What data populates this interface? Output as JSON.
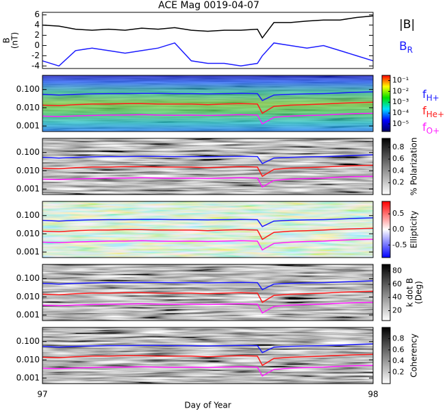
{
  "chart_data": [
    {
      "type": "line",
      "title": "ACE Mag 0019-04-07",
      "y_label": [
        "B",
        "(nT)"
      ],
      "legend": true,
      "x": [
        97,
        97.05,
        97.1,
        97.15,
        97.2,
        97.25,
        97.3,
        97.35,
        97.4,
        97.45,
        97.5,
        97.55,
        97.6,
        97.65,
        97.665,
        97.7,
        97.75,
        97.8,
        97.85,
        97.9,
        97.95,
        98
      ],
      "xlim": [
        97,
        98
      ],
      "ylim": [
        -4.5,
        6.5
      ],
      "yticks": [
        -4,
        -2,
        0,
        2,
        4,
        6
      ],
      "series": [
        {
          "name": "|B|",
          "color": "#000000",
          "values": [
            4,
            3.8,
            3.2,
            3,
            3.2,
            3,
            3.4,
            3.2,
            3.5,
            3,
            2.8,
            3,
            3,
            3.2,
            1.5,
            4.5,
            4.5,
            4.8,
            5,
            5,
            5.5,
            5.8
          ]
        },
        {
          "name": "B",
          "name_sub": "R",
          "color": "#1a1aff",
          "values": [
            -3,
            -4,
            -1,
            -0.5,
            -1,
            -1.5,
            -1,
            -0.5,
            0.5,
            -3,
            -3.5,
            -3.5,
            -4,
            -3.5,
            -2,
            0.5,
            0,
            -0.5,
            0,
            -1,
            -2,
            -3
          ]
        }
      ]
    },
    {
      "type": "spectrogram",
      "legend": true,
      "log_scale": true,
      "colormap": "rainbow",
      "x": [
        97,
        97.05,
        97.1,
        97.15,
        97.2,
        97.25,
        97.3,
        97.35,
        97.4,
        97.45,
        97.5,
        97.55,
        97.6,
        97.65,
        97.665,
        97.7,
        97.75,
        97.8,
        97.85,
        97.9,
        97.95,
        98
      ],
      "xlim": [
        97,
        98
      ],
      "ylim": [
        0.0005,
        0.6
      ],
      "yticks": [
        0.001,
        {
          "value": 0.01,
          "label": "0.010"
        },
        {
          "value": 0.1,
          "label": "0.100"
        }
      ],
      "zlim": [
        2e-06,
        0.3
      ],
      "zlog": true,
      "zticks": [
        {
          "value": 0.1,
          "label": "10⁻¹"
        },
        {
          "value": 0.01,
          "label": "10⁻²"
        },
        {
          "value": 0.001,
          "label": "10⁻³"
        },
        {
          "value": 0.0001,
          "label": "10⁻⁴"
        },
        {
          "value": 1e-05,
          "label": "10⁻⁵"
        }
      ],
      "series": [
        {
          "name": "f",
          "name_sub": "H+",
          "color": "#1a1aff",
          "values": [
            0.055,
            0.05,
            0.055,
            0.058,
            0.06,
            0.06,
            0.062,
            0.062,
            0.06,
            0.06,
            0.058,
            0.06,
            0.062,
            0.06,
            0.025,
            0.05,
            0.055,
            0.058,
            0.06,
            0.065,
            0.07,
            0.075
          ]
        },
        {
          "name": "f",
          "name_sub": "He+",
          "color": "#ff1a1a",
          "values": [
            0.014,
            0.013,
            0.015,
            0.016,
            0.016,
            0.017,
            0.017,
            0.016,
            0.016,
            0.016,
            0.015,
            0.016,
            0.017,
            0.016,
            0.005,
            0.012,
            0.014,
            0.015,
            0.016,
            0.018,
            0.019,
            0.02
          ]
        },
        {
          "name": "f",
          "name_sub": "O+",
          "color": "#ff1aff",
          "values": [
            0.0035,
            0.0033,
            0.0036,
            0.0038,
            0.004,
            0.004,
            0.0042,
            0.004,
            0.0039,
            0.004,
            0.0038,
            0.004,
            0.0042,
            0.004,
            0.0013,
            0.003,
            0.0035,
            0.0038,
            0.004,
            0.0045,
            0.0048,
            0.005
          ]
        }
      ]
    },
    {
      "type": "spectrogram",
      "log_scale": true,
      "colormap": "gray",
      "z_label": [
        "% Polarization"
      ],
      "x": [
        97,
        97.05,
        97.1,
        97.15,
        97.2,
        97.25,
        97.3,
        97.35,
        97.4,
        97.45,
        97.5,
        97.55,
        97.6,
        97.65,
        97.665,
        97.7,
        97.75,
        97.8,
        97.85,
        97.9,
        97.95,
        98
      ],
      "xlim": [
        97,
        98
      ],
      "ylim": [
        0.0005,
        0.6
      ],
      "yticks": [
        0.001,
        {
          "value": 0.01,
          "label": "0.010"
        },
        {
          "value": 0.1,
          "label": "0.100"
        }
      ],
      "zlim": [
        0,
        0.95
      ],
      "zticks": [
        0.2,
        0.4,
        0.6,
        0.8
      ],
      "series": [
        {
          "color": "#1a1aff",
          "values": [
            0.055,
            0.05,
            0.055,
            0.058,
            0.06,
            0.06,
            0.062,
            0.062,
            0.06,
            0.06,
            0.058,
            0.06,
            0.062,
            0.06,
            0.025,
            0.05,
            0.055,
            0.058,
            0.06,
            0.065,
            0.07,
            0.075
          ]
        },
        {
          "color": "#ff1a1a",
          "values": [
            0.014,
            0.013,
            0.015,
            0.016,
            0.016,
            0.017,
            0.017,
            0.016,
            0.016,
            0.016,
            0.015,
            0.016,
            0.017,
            0.016,
            0.005,
            0.012,
            0.014,
            0.015,
            0.016,
            0.018,
            0.019,
            0.02
          ]
        },
        {
          "color": "#ff1aff",
          "values": [
            0.0035,
            0.0033,
            0.0036,
            0.0038,
            0.004,
            0.004,
            0.0042,
            0.004,
            0.0039,
            0.004,
            0.0038,
            0.004,
            0.0042,
            0.004,
            0.0013,
            0.003,
            0.0035,
            0.0038,
            0.004,
            0.0045,
            0.0048,
            0.005
          ]
        }
      ]
    },
    {
      "type": "spectrogram",
      "log_scale": true,
      "colormap": "bwr",
      "z_label": [
        "Ellipticity"
      ],
      "x": [
        97,
        97.05,
        97.1,
        97.15,
        97.2,
        97.25,
        97.3,
        97.35,
        97.4,
        97.45,
        97.5,
        97.55,
        97.6,
        97.65,
        97.665,
        97.7,
        97.75,
        97.8,
        97.85,
        97.9,
        97.95,
        98
      ],
      "xlim": [
        97,
        98
      ],
      "ylim": [
        0.0005,
        0.6
      ],
      "yticks": [
        0.001,
        {
          "value": 0.01,
          "label": "0.010"
        },
        {
          "value": 0.1,
          "label": "0.100"
        }
      ],
      "zlim": [
        -0.9,
        0.9
      ],
      "zticks": [
        -0.5,
        {
          "value": 0,
          "label": "0.0"
        },
        0.5
      ],
      "series": [
        {
          "color": "#1a1aff",
          "values": [
            0.055,
            0.05,
            0.055,
            0.058,
            0.06,
            0.06,
            0.062,
            0.062,
            0.06,
            0.06,
            0.058,
            0.06,
            0.062,
            0.06,
            0.025,
            0.05,
            0.055,
            0.058,
            0.06,
            0.065,
            0.07,
            0.075
          ]
        },
        {
          "color": "#ff1a1a",
          "values": [
            0.014,
            0.013,
            0.015,
            0.016,
            0.016,
            0.017,
            0.017,
            0.016,
            0.016,
            0.016,
            0.015,
            0.016,
            0.017,
            0.016,
            0.005,
            0.012,
            0.014,
            0.015,
            0.016,
            0.018,
            0.019,
            0.02
          ]
        },
        {
          "color": "#ff1aff",
          "values": [
            0.0035,
            0.0033,
            0.0036,
            0.0038,
            0.004,
            0.004,
            0.0042,
            0.004,
            0.0039,
            0.004,
            0.0038,
            0.004,
            0.0042,
            0.004,
            0.0013,
            0.003,
            0.0035,
            0.0038,
            0.004,
            0.0045,
            0.0048,
            0.005
          ]
        }
      ]
    },
    {
      "type": "spectrogram",
      "log_scale": true,
      "colormap": "gray",
      "z_label": [
        "k dot B",
        "(Deg)"
      ],
      "x": [
        97,
        97.05,
        97.1,
        97.15,
        97.2,
        97.25,
        97.3,
        97.35,
        97.4,
        97.45,
        97.5,
        97.55,
        97.6,
        97.65,
        97.665,
        97.7,
        97.75,
        97.8,
        97.85,
        97.9,
        97.95,
        98
      ],
      "xlim": [
        97,
        98
      ],
      "ylim": [
        0.0005,
        0.6
      ],
      "yticks": [
        0.001,
        {
          "value": 0.01,
          "label": "0.010"
        },
        {
          "value": 0.1,
          "label": "0.100"
        }
      ],
      "zlim": [
        5,
        90
      ],
      "zticks": [
        20,
        40,
        60,
        80
      ],
      "series": [
        {
          "color": "#1a1aff",
          "values": [
            0.055,
            0.05,
            0.055,
            0.058,
            0.06,
            0.06,
            0.062,
            0.062,
            0.06,
            0.06,
            0.058,
            0.06,
            0.062,
            0.06,
            0.025,
            0.05,
            0.055,
            0.058,
            0.06,
            0.065,
            0.07,
            0.075
          ]
        },
        {
          "color": "#ff1a1a",
          "values": [
            0.014,
            0.013,
            0.015,
            0.016,
            0.016,
            0.017,
            0.017,
            0.016,
            0.016,
            0.016,
            0.015,
            0.016,
            0.017,
            0.016,
            0.005,
            0.012,
            0.014,
            0.015,
            0.016,
            0.018,
            0.019,
            0.02
          ]
        },
        {
          "color": "#ff1aff",
          "values": [
            0.0035,
            0.0033,
            0.0036,
            0.0038,
            0.004,
            0.004,
            0.0042,
            0.004,
            0.0039,
            0.004,
            0.0038,
            0.004,
            0.0042,
            0.004,
            0.0013,
            0.003,
            0.0035,
            0.0038,
            0.004,
            0.0045,
            0.0048,
            0.005
          ]
        }
      ]
    },
    {
      "type": "spectrogram",
      "log_scale": true,
      "colormap": "gray",
      "z_label": [
        "Coherency"
      ],
      "x_label": "Day of Year",
      "x": [
        97,
        97.05,
        97.1,
        97.15,
        97.2,
        97.25,
        97.3,
        97.35,
        97.4,
        97.45,
        97.5,
        97.55,
        97.6,
        97.65,
        97.665,
        97.7,
        97.75,
        97.8,
        97.85,
        97.9,
        97.95,
        98
      ],
      "xlim": [
        97,
        98
      ],
      "xticks": [
        97,
        98
      ],
      "ylim": [
        0.0005,
        0.6
      ],
      "yticks": [
        0.001,
        {
          "value": 0.01,
          "label": "0.010"
        },
        {
          "value": 0.1,
          "label": "0.100"
        }
      ],
      "zlim": [
        0,
        1
      ],
      "zticks": [
        0.2,
        0.4,
        0.6,
        0.8
      ],
      "series": [
        {
          "color": "#1a1aff",
          "values": [
            0.055,
            0.05,
            0.055,
            0.058,
            0.06,
            0.06,
            0.062,
            0.062,
            0.06,
            0.06,
            0.058,
            0.06,
            0.062,
            0.06,
            0.025,
            0.05,
            0.055,
            0.058,
            0.06,
            0.065,
            0.07,
            0.075
          ]
        },
        {
          "color": "#ff1a1a",
          "values": [
            0.014,
            0.013,
            0.015,
            0.016,
            0.016,
            0.017,
            0.017,
            0.016,
            0.016,
            0.016,
            0.015,
            0.016,
            0.017,
            0.016,
            0.005,
            0.012,
            0.014,
            0.015,
            0.016,
            0.018,
            0.019,
            0.02
          ]
        },
        {
          "color": "#ff1aff",
          "values": [
            0.0035,
            0.0033,
            0.0036,
            0.0038,
            0.004,
            0.004,
            0.0042,
            0.004,
            0.0039,
            0.004,
            0.0038,
            0.004,
            0.0042,
            0.004,
            0.0013,
            0.003,
            0.0035,
            0.0038,
            0.004,
            0.0045,
            0.0048,
            0.005
          ]
        }
      ]
    }
  ]
}
